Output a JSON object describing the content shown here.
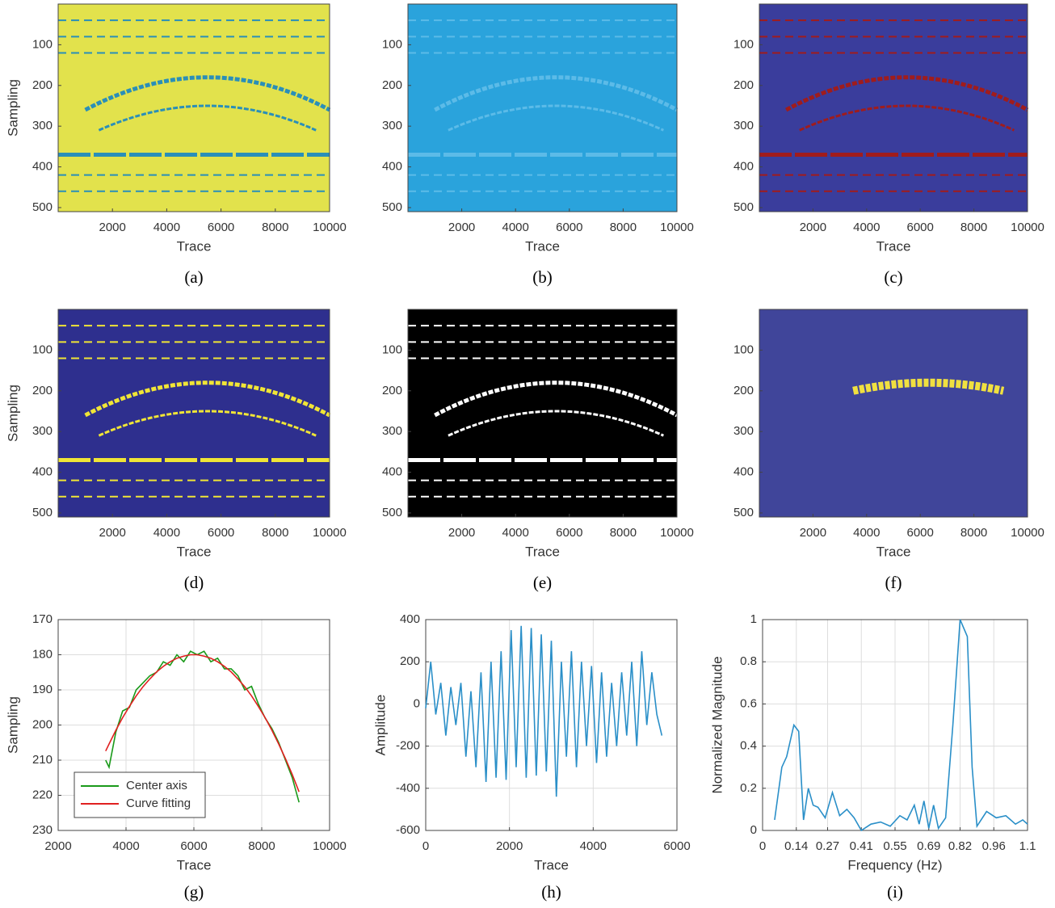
{
  "chart_data": [
    {
      "type": "image",
      "caption": "(a)",
      "xlabel": "Trace",
      "ylabel": "Sampling",
      "color": "#e2e24c",
      "feature_color": "#2a8fb8",
      "xlim": [
        0,
        10000
      ],
      "xticks": [
        2000,
        4000,
        6000,
        8000,
        10000
      ],
      "ylim": [
        510,
        0
      ],
      "yticks": [
        100,
        200,
        300,
        400,
        500
      ]
    },
    {
      "type": "image",
      "caption": "(b)",
      "xlabel": "Trace",
      "color": "#2aa3dc",
      "feature_color": "#5cbbe8",
      "xlim": [
        0,
        10000
      ],
      "xticks": [
        2000,
        4000,
        6000,
        8000,
        10000
      ],
      "ylim": [
        510,
        0
      ],
      "yticks": [
        100,
        200,
        300,
        400,
        500
      ]
    },
    {
      "type": "image",
      "caption": "(c)",
      "xlabel": "Trace",
      "color": "#3a3d9c",
      "feature_color": "#a01c1c",
      "xlim": [
        0,
        10000
      ],
      "xticks": [
        2000,
        4000,
        6000,
        8000,
        10000
      ],
      "ylim": [
        510,
        0
      ],
      "yticks": [
        100,
        200,
        300,
        400,
        500
      ]
    },
    {
      "type": "image",
      "caption": "(d)",
      "xlabel": "Trace",
      "ylabel": "Sampling",
      "color": "#2e2f8e",
      "feature_color": "#f0e536",
      "xlim": [
        0,
        10000
      ],
      "xticks": [
        2000,
        4000,
        6000,
        8000,
        10000
      ],
      "ylim": [
        510,
        0
      ],
      "yticks": [
        100,
        200,
        300,
        400,
        500
      ]
    },
    {
      "type": "image",
      "caption": "(e)",
      "xlabel": "Trace",
      "color": "#000000",
      "feature_color": "#ffffff",
      "xlim": [
        0,
        10000
      ],
      "xticks": [
        2000,
        4000,
        6000,
        8000,
        10000
      ],
      "ylim": [
        510,
        0
      ],
      "yticks": [
        100,
        200,
        300,
        400,
        500
      ]
    },
    {
      "type": "image",
      "caption": "(f)",
      "xlabel": "Trace",
      "color": "#40459a",
      "feature_color": "#f0e040",
      "xlim": [
        0,
        10000
      ],
      "xticks": [
        2000,
        4000,
        6000,
        8000,
        10000
      ],
      "ylim": [
        510,
        0
      ],
      "yticks": [
        100,
        200,
        300,
        400,
        500
      ]
    },
    {
      "type": "line",
      "caption": "(g)",
      "xlabel": "Trace",
      "ylabel": "Sampling",
      "grid": true,
      "legend": "lower left",
      "x": [
        3400,
        3500,
        3700,
        3900,
        4100,
        4300,
        4500,
        4700,
        4900,
        5100,
        5300,
        5500,
        5700,
        5900,
        6100,
        6300,
        6500,
        6700,
        6900,
        7100,
        7300,
        7500,
        7700,
        7900,
        8100,
        8300,
        8500,
        8700,
        8900,
        9100
      ],
      "series": [
        {
          "name": "Center axis",
          "color": "#1a9a1a",
          "values": [
            210,
            212,
            202,
            196,
            195,
            190,
            188,
            186,
            185,
            182,
            183,
            180,
            182,
            179,
            180,
            179,
            182,
            181,
            184,
            184,
            186,
            190,
            189,
            194,
            198,
            201,
            205,
            210,
            215,
            222
          ]
        },
        {
          "name": "Curve fitting",
          "color": "#e02020",
          "values": [
            207.4,
            205.4,
            201.5,
            197.9,
            194.7,
            191.7,
            189.1,
            186.9,
            184.9,
            183.3,
            182.0,
            181.0,
            180.4,
            180.0,
            180.0,
            180.4,
            181.0,
            182.0,
            183.3,
            184.9,
            186.9,
            189.1,
            191.7,
            194.7,
            197.9,
            201.5,
            205.4,
            209.6,
            214.1,
            219.0
          ]
        }
      ],
      "xlim": [
        2000,
        10000
      ],
      "xticks": [
        2000,
        4000,
        6000,
        8000,
        10000
      ],
      "ylim": [
        230,
        170
      ],
      "yticks": [
        170,
        180,
        190,
        200,
        210,
        220,
        230
      ]
    },
    {
      "type": "line",
      "caption": "(h)",
      "xlabel": "Trace",
      "ylabel": "Amplitude",
      "grid": true,
      "x": [
        0,
        120,
        240,
        360,
        480,
        600,
        720,
        840,
        960,
        1080,
        1200,
        1320,
        1440,
        1560,
        1680,
        1800,
        1920,
        2040,
        2160,
        2280,
        2400,
        2520,
        2640,
        2760,
        2880,
        3000,
        3120,
        3240,
        3360,
        3480,
        3600,
        3720,
        3840,
        3960,
        4080,
        4200,
        4320,
        4440,
        4560,
        4680,
        4800,
        4920,
        5040,
        5160,
        5280,
        5400,
        5520,
        5640
      ],
      "series": [
        {
          "color": "#2a8fc8",
          "values": [
            -20,
            200,
            -50,
            100,
            -150,
            80,
            -100,
            100,
            -250,
            60,
            -300,
            150,
            -370,
            200,
            -350,
            250,
            -360,
            350,
            -300,
            370,
            -350,
            360,
            -340,
            330,
            -320,
            300,
            -440,
            200,
            -250,
            250,
            -300,
            200,
            -200,
            180,
            -280,
            150,
            -250,
            100,
            -200,
            150,
            -150,
            200,
            -200,
            250,
            -100,
            150,
            -50,
            -150
          ]
        }
      ],
      "xlim": [
        0,
        6000
      ],
      "xticks": [
        0,
        2000,
        4000,
        6000
      ],
      "ylim": [
        -600,
        400
      ],
      "yticks": [
        -600,
        -400,
        -200,
        0,
        200,
        400
      ]
    },
    {
      "type": "line",
      "caption": "(i)",
      "xlabel": "Frequency (Hz)",
      "ylabel": "Normalized Magnitude",
      "grid": true,
      "x": [
        0.05,
        0.08,
        0.1,
        0.13,
        0.15,
        0.17,
        0.19,
        0.21,
        0.23,
        0.26,
        0.29,
        0.32,
        0.35,
        0.38,
        0.41,
        0.45,
        0.49,
        0.53,
        0.57,
        0.6,
        0.63,
        0.65,
        0.67,
        0.69,
        0.71,
        0.73,
        0.76,
        0.79,
        0.82,
        0.85,
        0.87,
        0.89,
        0.93,
        0.97,
        1.01,
        1.05,
        1.08,
        1.1
      ],
      "series": [
        {
          "color": "#2a8fc8",
          "values": [
            0.05,
            0.3,
            0.35,
            0.5,
            0.47,
            0.05,
            0.2,
            0.12,
            0.11,
            0.06,
            0.18,
            0.07,
            0.1,
            0.06,
            0,
            0.03,
            0.04,
            0.02,
            0.07,
            0.05,
            0.12,
            0.03,
            0.14,
            0.01,
            0.12,
            0.01,
            0.06,
            0.5,
            1.0,
            0.92,
            0.3,
            0.02,
            0.09,
            0.06,
            0.07,
            0.03,
            0.05,
            0.03
          ]
        }
      ],
      "xlim": [
        0,
        1.1
      ],
      "xticks": [
        0,
        0.14,
        0.27,
        0.41,
        0.55,
        0.69,
        0.82,
        0.96,
        1.1
      ],
      "ylim": [
        0,
        1
      ],
      "yticks": [
        0,
        0.2,
        0.4,
        0.6,
        0.8,
        1
      ]
    }
  ]
}
